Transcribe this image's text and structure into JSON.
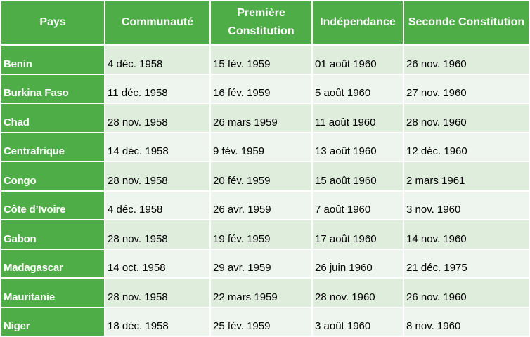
{
  "table": {
    "headers": [
      "Pays",
      "Communauté",
      "Première Constitution",
      "Indépendance",
      "Seconde Constitution"
    ],
    "rows": [
      [
        "Benin",
        "4 déc. 1958",
        "15 fév. 1959",
        "01 août 1960",
        "26 nov. 1960"
      ],
      [
        "Burkina Faso",
        "11 déc. 1958",
        "16 fév. 1959",
        "5 août 1960",
        "27 nov. 1960"
      ],
      [
        "Chad",
        "28 nov. 1958",
        "26 mars 1959",
        "11 août 1960",
        "28 nov. 1960"
      ],
      [
        "Centrafrique",
        "14 déc. 1958",
        "9 fév. 1959",
        "13 août 1960",
        "12 déc. 1960"
      ],
      [
        "Congo",
        "28 nov. 1958",
        "20 fév. 1959",
        "15 août 1960",
        "2 mars 1961"
      ],
      [
        "Côte d’Ivoire",
        "4 déc. 1958",
        "26 avr. 1959",
        "7 août 1960",
        "3 nov. 1960"
      ],
      [
        "Gabon",
        "28 nov. 1958",
        "19 fév. 1959",
        "17 août 1960",
        "14 nov. 1960"
      ],
      [
        "Madagascar",
        "14 oct. 1958",
        "29 avr. 1959",
        "26 juin 1960",
        "21 déc. 1975"
      ],
      [
        "Mauritanie",
        "28 nov. 1958",
        "22 mars 1959",
        "28 nov. 1960",
        "26 nov. 1960"
      ],
      [
        "Niger",
        "18 déc. 1958",
        "25 fév. 1959",
        "3 août 1960",
        "8 nov. 1960"
      ]
    ]
  },
  "colors": {
    "header_green": "#4ead46",
    "row_light_a": "#dfeddd",
    "row_light_b": "#eef5ee",
    "header_text": "#ffffff"
  }
}
